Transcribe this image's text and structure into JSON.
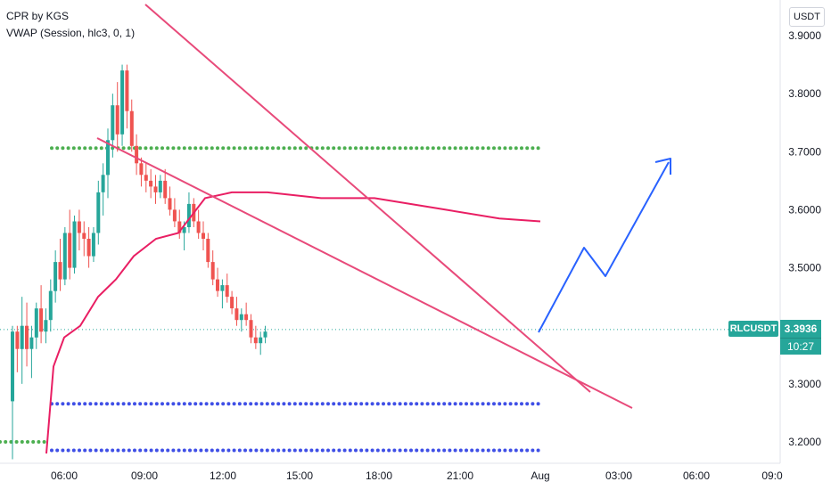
{
  "indicators": {
    "line1": "CPR by KGS",
    "line2": "VWAP (Session, hlc3, 0, 1)"
  },
  "price_axis": {
    "unit": "USDT",
    "ticks": [
      "3.9000",
      "3.8000",
      "3.7000",
      "3.6000",
      "3.5000",
      "3.3000",
      "3.2000"
    ]
  },
  "time_axis": {
    "ticks": [
      "06:00",
      "09:00",
      "12:00",
      "15:00",
      "18:00",
      "21:00",
      "Aug",
      "03:00",
      "06:00",
      "09:0"
    ]
  },
  "price_tag": {
    "symbol": "RLCUSDT",
    "price": "3.3936",
    "countdown": "10:27"
  },
  "colors": {
    "up": "#26a69a",
    "down": "#ef5350",
    "vwap": "#e91e63",
    "trendline": "#e84a7a",
    "projection": "#2962ff",
    "cpr_top": "#4caf50",
    "cpr_bottom": "#3f4fe6",
    "axis_text": "#131722"
  },
  "chart_data": {
    "type": "candlestick",
    "symbol": "RLCUSDT",
    "yunit": "USDT",
    "ylim": [
      3.1854,
      3.9333
    ],
    "current_price": 3.3936,
    "candles_ohlc": [
      [
        3.27,
        3.4,
        3.17,
        3.39
      ],
      [
        3.39,
        3.4,
        3.32,
        3.36
      ],
      [
        3.36,
        3.45,
        3.3,
        3.4
      ],
      [
        3.4,
        3.44,
        3.33,
        3.36
      ],
      [
        3.36,
        3.4,
        3.31,
        3.38
      ],
      [
        3.38,
        3.44,
        3.36,
        3.43
      ],
      [
        3.43,
        3.47,
        3.37,
        3.39
      ],
      [
        3.39,
        3.43,
        3.37,
        3.41
      ],
      [
        3.41,
        3.48,
        3.39,
        3.46
      ],
      [
        3.46,
        3.53,
        3.44,
        3.51
      ],
      [
        3.51,
        3.55,
        3.46,
        3.48
      ],
      [
        3.48,
        3.57,
        3.47,
        3.56
      ],
      [
        3.56,
        3.6,
        3.48,
        3.5
      ],
      [
        3.5,
        3.59,
        3.49,
        3.58
      ],
      [
        3.58,
        3.6,
        3.53,
        3.56
      ],
      [
        3.56,
        3.58,
        3.52,
        3.55
      ],
      [
        3.55,
        3.57,
        3.5,
        3.52
      ],
      [
        3.52,
        3.57,
        3.51,
        3.56
      ],
      [
        3.56,
        3.65,
        3.54,
        3.63
      ],
      [
        3.63,
        3.68,
        3.59,
        3.66
      ],
      [
        3.66,
        3.74,
        3.62,
        3.72
      ],
      [
        3.72,
        3.8,
        3.69,
        3.78
      ],
      [
        3.78,
        3.82,
        3.7,
        3.73
      ],
      [
        3.73,
        3.85,
        3.71,
        3.84
      ],
      [
        3.84,
        3.85,
        3.74,
        3.77
      ],
      [
        3.77,
        3.79,
        3.7,
        3.71
      ],
      [
        3.71,
        3.73,
        3.66,
        3.68
      ],
      [
        3.68,
        3.69,
        3.64,
        3.66
      ],
      [
        3.66,
        3.68,
        3.63,
        3.65
      ],
      [
        3.65,
        3.67,
        3.62,
        3.64
      ],
      [
        3.64,
        3.66,
        3.61,
        3.63
      ],
      [
        3.63,
        3.66,
        3.62,
        3.65
      ],
      [
        3.65,
        3.67,
        3.61,
        3.62
      ],
      [
        3.62,
        3.64,
        3.59,
        3.6
      ],
      [
        3.6,
        3.62,
        3.57,
        3.58
      ],
      [
        3.58,
        3.6,
        3.55,
        3.56
      ],
      [
        3.56,
        3.58,
        3.53,
        3.57
      ],
      [
        3.57,
        3.63,
        3.56,
        3.61
      ],
      [
        3.61,
        3.62,
        3.57,
        3.58
      ],
      [
        3.58,
        3.6,
        3.55,
        3.56
      ],
      [
        3.56,
        3.58,
        3.53,
        3.55
      ],
      [
        3.55,
        3.56,
        3.5,
        3.51
      ],
      [
        3.51,
        3.53,
        3.47,
        3.48
      ],
      [
        3.48,
        3.5,
        3.45,
        3.46
      ],
      [
        3.46,
        3.48,
        3.43,
        3.47
      ],
      [
        3.47,
        3.49,
        3.44,
        3.45
      ],
      [
        3.45,
        3.46,
        3.42,
        3.43
      ],
      [
        3.43,
        3.45,
        3.4,
        3.41
      ],
      [
        3.41,
        3.43,
        3.39,
        3.42
      ],
      [
        3.42,
        3.44,
        3.4,
        3.41
      ],
      [
        3.41,
        3.42,
        3.37,
        3.38
      ],
      [
        3.38,
        3.4,
        3.36,
        3.37
      ],
      [
        3.37,
        3.39,
        3.35,
        3.38
      ],
      [
        3.38,
        3.4,
        3.37,
        3.39
      ]
    ],
    "cpr_levels": {
      "top": 3.7063,
      "bottom_1": 3.2656,
      "bottom_2": 3.1854
    },
    "vwap": [
      3.28,
      3.38,
      3.4,
      3.45,
      3.48,
      3.52,
      3.55,
      3.58,
      3.6,
      3.61,
      3.61,
      3.6,
      3.59,
      3.58
    ],
    "trendlines": [
      {
        "from": [
          0,
          3.86
        ],
        "to": [
          62,
          3.29
        ]
      },
      {
        "from": [
          -12,
          3.71
        ],
        "to": [
          64,
          3.26
        ]
      }
    ],
    "projection": [
      [
        3.39,
        0
      ],
      [
        3.53,
        0.35
      ],
      [
        3.48,
        0.5
      ],
      [
        3.68,
        1
      ]
    ]
  }
}
